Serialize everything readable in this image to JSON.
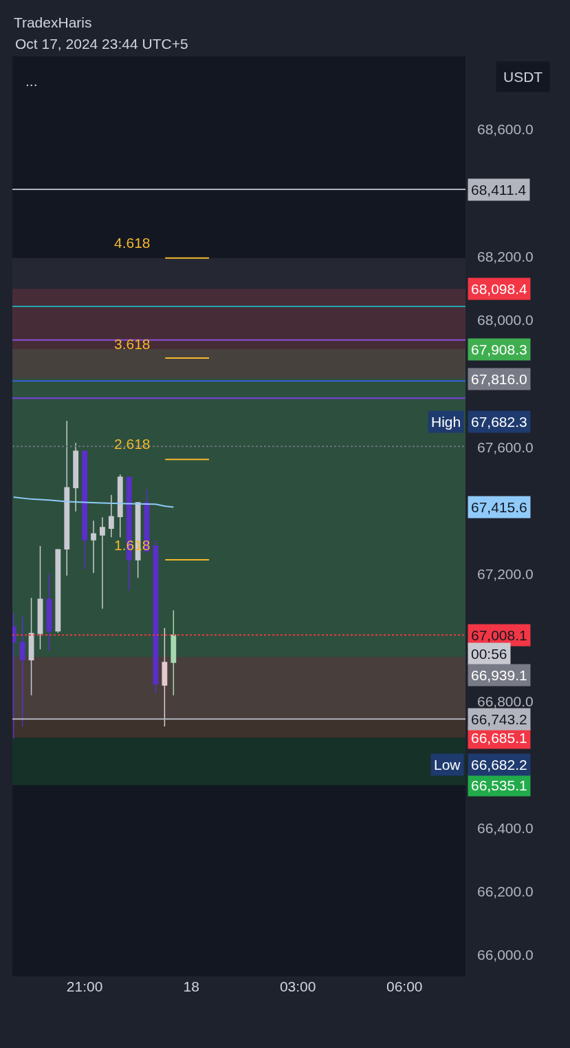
{
  "chart_data": {
    "type": "candlestick",
    "title": "TradexHaris",
    "subtitle": "Oct 17, 2024 23:44 UTC+5",
    "x": [
      "2024-10-17T19:00",
      "2024-10-17T19:15",
      "2024-10-17T19:30",
      "2024-10-17T19:45",
      "2024-10-17T20:00",
      "2024-10-17T20:15",
      "2024-10-17T20:30",
      "2024-10-17T20:45",
      "2024-10-17T21:00",
      "2024-10-17T21:15",
      "2024-10-17T21:30",
      "2024-10-17T21:45",
      "2024-10-17T22:00",
      "2024-10-17T22:15",
      "2024-10-17T22:30",
      "2024-10-17T22:45",
      "2024-10-17T23:00",
      "2024-10-17T23:15",
      "2024-10-17T23:30"
    ],
    "ohlc": [
      [
        67034,
        67078,
        66682.2,
        66987
      ],
      [
        66985,
        67067,
        66720,
        66930
      ],
      [
        66930,
        67125,
        66818,
        67013
      ],
      [
        67013,
        67288,
        66963,
        67121
      ],
      [
        67121,
        67201,
        66958,
        67021
      ],
      [
        67021,
        67277,
        67015,
        67277
      ],
      [
        67279,
        67682.3,
        67195,
        67472
      ],
      [
        67472,
        67613,
        67397,
        67587
      ],
      [
        67587,
        67587,
        67214,
        67308
      ],
      [
        67308,
        67368,
        67203,
        67327
      ],
      [
        67323,
        67379,
        67091,
        67347
      ],
      [
        67344,
        67449,
        67316,
        67381
      ],
      [
        67381,
        67514,
        67316,
        67505
      ],
      [
        67505,
        67505,
        67149,
        67245
      ],
      [
        67245,
        67425,
        67188,
        67425
      ],
      [
        67425,
        67466,
        67266,
        67273
      ],
      [
        67288,
        67307,
        66824,
        66854
      ],
      [
        66850,
        67030,
        66720,
        66922
      ],
      [
        66922,
        67086,
        66818,
        67008.1
      ]
    ],
    "colors": [
      "#5b2fc9",
      "#5b2fc9",
      "#c9cad1",
      "#c9cad1",
      "#5b2fc9",
      "#c9cad1",
      "#c9cad1",
      "#c9cad1",
      "#5b2fc9",
      "#c9cad1",
      "#c9cad1",
      "#c9cad1",
      "#c9cad1",
      "#5b2fc9",
      "#c9cad1",
      "#5b2fc9",
      "#5b2fc9",
      "#e3c9d2",
      "#a8d8b0"
    ],
    "series": [
      {
        "type": "line",
        "color": "#90caf9",
        "x": [
          "2024-10-17T19:00",
          "2024-10-17T19:30",
          "2024-10-17T20:00",
          "2024-10-17T20:30",
          "2024-10-17T21:00",
          "2024-10-17T21:30",
          "2024-10-17T22:00",
          "2024-10-17T22:30",
          "2024-10-17T23:00",
          "2024-10-17T23:15",
          "2024-10-17T23:30"
        ],
        "values": [
          67442,
          67436,
          67433,
          67428,
          67426,
          67424,
          67422,
          67421,
          67420,
          67414,
          67411
        ]
      },
      {
        "type": "line",
        "color": "#f5b82e",
        "x": [
          "2024-10-17T23:16",
          "2024-10-18T00:30"
        ],
        "values": [
          68195,
          68195
        ]
      },
      {
        "type": "line",
        "color": "#f5b82e",
        "x": [
          "2024-10-17T23:16",
          "2024-10-18T00:30"
        ],
        "values": [
          67880,
          67880
        ]
      },
      {
        "type": "line",
        "color": "#f5b82e",
        "x": [
          "2024-10-17T23:16",
          "2024-10-18T00:30"
        ],
        "values": [
          67561,
          67561
        ]
      },
      {
        "type": "line",
        "color": "#f5b82e",
        "x": [
          "2024-10-17T23:16",
          "2024-10-18T00:30"
        ],
        "values": [
          67245,
          67245
        ]
      }
    ],
    "xlim": [
      "2024-10-17T18:58",
      "2024-10-18T07:43"
    ],
    "xticks": [
      {
        "value": "2024-10-17T21:00",
        "label": "21:00"
      },
      {
        "value": "2024-10-18T00:00",
        "label": "18"
      },
      {
        "value": "2024-10-18T03:00",
        "label": "03:00"
      },
      {
        "value": "2024-10-18T06:00",
        "label": "06:00"
      }
    ],
    "ylim": [
      65933,
      68830
    ],
    "yticks": [
      {
        "value": 66000,
        "label": "66,000.0"
      },
      {
        "value": 66200,
        "label": "66,200.0"
      },
      {
        "value": 66400,
        "label": "66,400.0"
      },
      {
        "value": 66800,
        "label": "66,800.0"
      },
      {
        "value": 67200,
        "label": "67,200.0"
      },
      {
        "value": 67600,
        "label": "67,600.0"
      },
      {
        "value": 68000,
        "label": "68,000.0"
      },
      {
        "value": 68200,
        "label": "68,200.0"
      },
      {
        "value": 68600,
        "label": "68,600.0"
      }
    ],
    "grid": false,
    "ref_lines": [
      {
        "axis": "y",
        "value": 68411.4,
        "label": "68,411.4",
        "color": "#b2b5be",
        "line_style": "solid"
      },
      {
        "axis": "y",
        "value": 68043,
        "color": "#26a6b0",
        "line_style": "solid"
      },
      {
        "axis": "y",
        "value": 67937,
        "color": "#8e4fd8",
        "line_style": "solid"
      },
      {
        "axis": "y",
        "value": 67808,
        "color": "#3a5fd9",
        "line_style": "solid"
      },
      {
        "axis": "y",
        "value": 67754,
        "color": "#7b3fe4",
        "line_style": "solid"
      },
      {
        "axis": "y",
        "value": 67602,
        "color": "#6b6e78",
        "line_style": "dotted"
      },
      {
        "axis": "y",
        "value": 67008.1,
        "label": "67,008.1",
        "color": "#f23645",
        "line_style": "dotted"
      },
      {
        "axis": "y",
        "value": 66743.2,
        "label": "66,743.2",
        "color": "#b2b5be",
        "line_style": "solid"
      }
    ],
    "bands": [
      {
        "axis": "y",
        "from": 67816.0,
        "to": 68098.4,
        "label": "68,098.4",
        "color": "#f23645"
      },
      {
        "axis": "y",
        "from": 67816.0,
        "to": 66535.1,
        "label": "66,535.1",
        "color": "#22ab4a"
      },
      {
        "axis": "y",
        "from": 66939.1,
        "to": 67908.3,
        "label": "67,908.3",
        "color": "#3fae4f"
      },
      {
        "axis": "y",
        "from": 66939.1,
        "to": 66685.1,
        "label": "66,685.1",
        "color": "#f23645"
      },
      {
        "axis": "y",
        "from": 66743.2,
        "to": 68195,
        "color": "#787b86"
      }
    ],
    "annotations": [
      "...",
      "USDT",
      "4.618",
      "3.618",
      "2.618",
      "1.618",
      "67,816.0",
      "High",
      "67,682.3",
      "67,415.6",
      "00:56",
      "66,939.1",
      "Low",
      "66,682.2"
    ]
  }
}
